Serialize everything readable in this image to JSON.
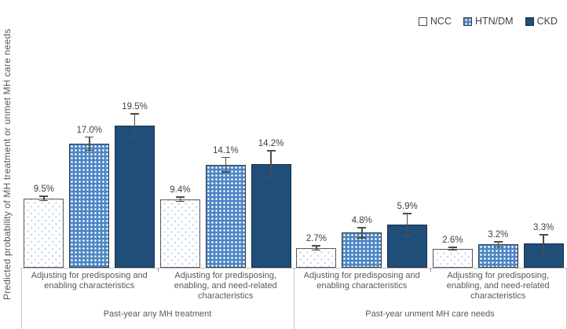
{
  "y_axis_title": "Predicted probability of MH treatment or unmet MH care needs",
  "legend": {
    "items": [
      {
        "label": "NCC"
      },
      {
        "label": "HTN/DM"
      },
      {
        "label": "CKD"
      }
    ]
  },
  "chart_data": {
    "type": "bar",
    "title": "",
    "ylabel": "Predicted probability of MH treatment or unmet MH care needs",
    "xlabel": "",
    "series": [
      "NCC",
      "HTN/DM",
      "CKD"
    ],
    "series_colors": {
      "NCC": "#FFFFFF",
      "HTN/DM": "#4D87C6",
      "CKD": "#1F4E79"
    },
    "series_patterns": {
      "NCC": "light-blue-dots-on-white",
      "HTN/DM": "white-dots-on-blue",
      "CKD": "solid"
    },
    "bar_outline_color": "#404040",
    "error_bar_color": "#4d4d4d",
    "ylim": [
      0,
      30
    ],
    "grid": false,
    "legend_position": "top-right",
    "value_label_format": "percent-one-decimal",
    "groups": [
      {
        "label": "Past-year any MH treatment",
        "subgroups": [
          {
            "label": "Adjusting for predisposing and enabling characteristics",
            "values": [
              9.5,
              17.0,
              19.5
            ],
            "value_labels": [
              "9.5%",
              "17.0%",
              "19.5%"
            ],
            "error_halfwidths": [
              0.3,
              0.9,
              1.6
            ]
          },
          {
            "label": "Adjusting for predisposing, enabling, and need-related characteristics",
            "values": [
              9.4,
              14.1,
              14.2
            ],
            "value_labels": [
              "9.4%",
              "14.1%",
              "14.2%"
            ],
            "error_halfwidths": [
              0.3,
              1.0,
              1.8
            ]
          }
        ]
      },
      {
        "label": "Past-year unment MH care needs",
        "subgroups": [
          {
            "label": "Adjusting for predisposing and enabling characteristics",
            "values": [
              2.7,
              4.8,
              5.9
            ],
            "value_labels": [
              "2.7%",
              "4.8%",
              "5.9%"
            ],
            "error_halfwidths": [
              0.3,
              0.7,
              1.5
            ]
          },
          {
            "label": "Adjusting for predisposing, enabling, and need-related characteristics",
            "values": [
              2.6,
              3.2,
              3.3
            ],
            "value_labels": [
              "2.6%",
              "3.2%",
              "3.3%"
            ],
            "error_halfwidths": [
              0.2,
              0.35,
              1.2
            ]
          }
        ]
      }
    ]
  }
}
